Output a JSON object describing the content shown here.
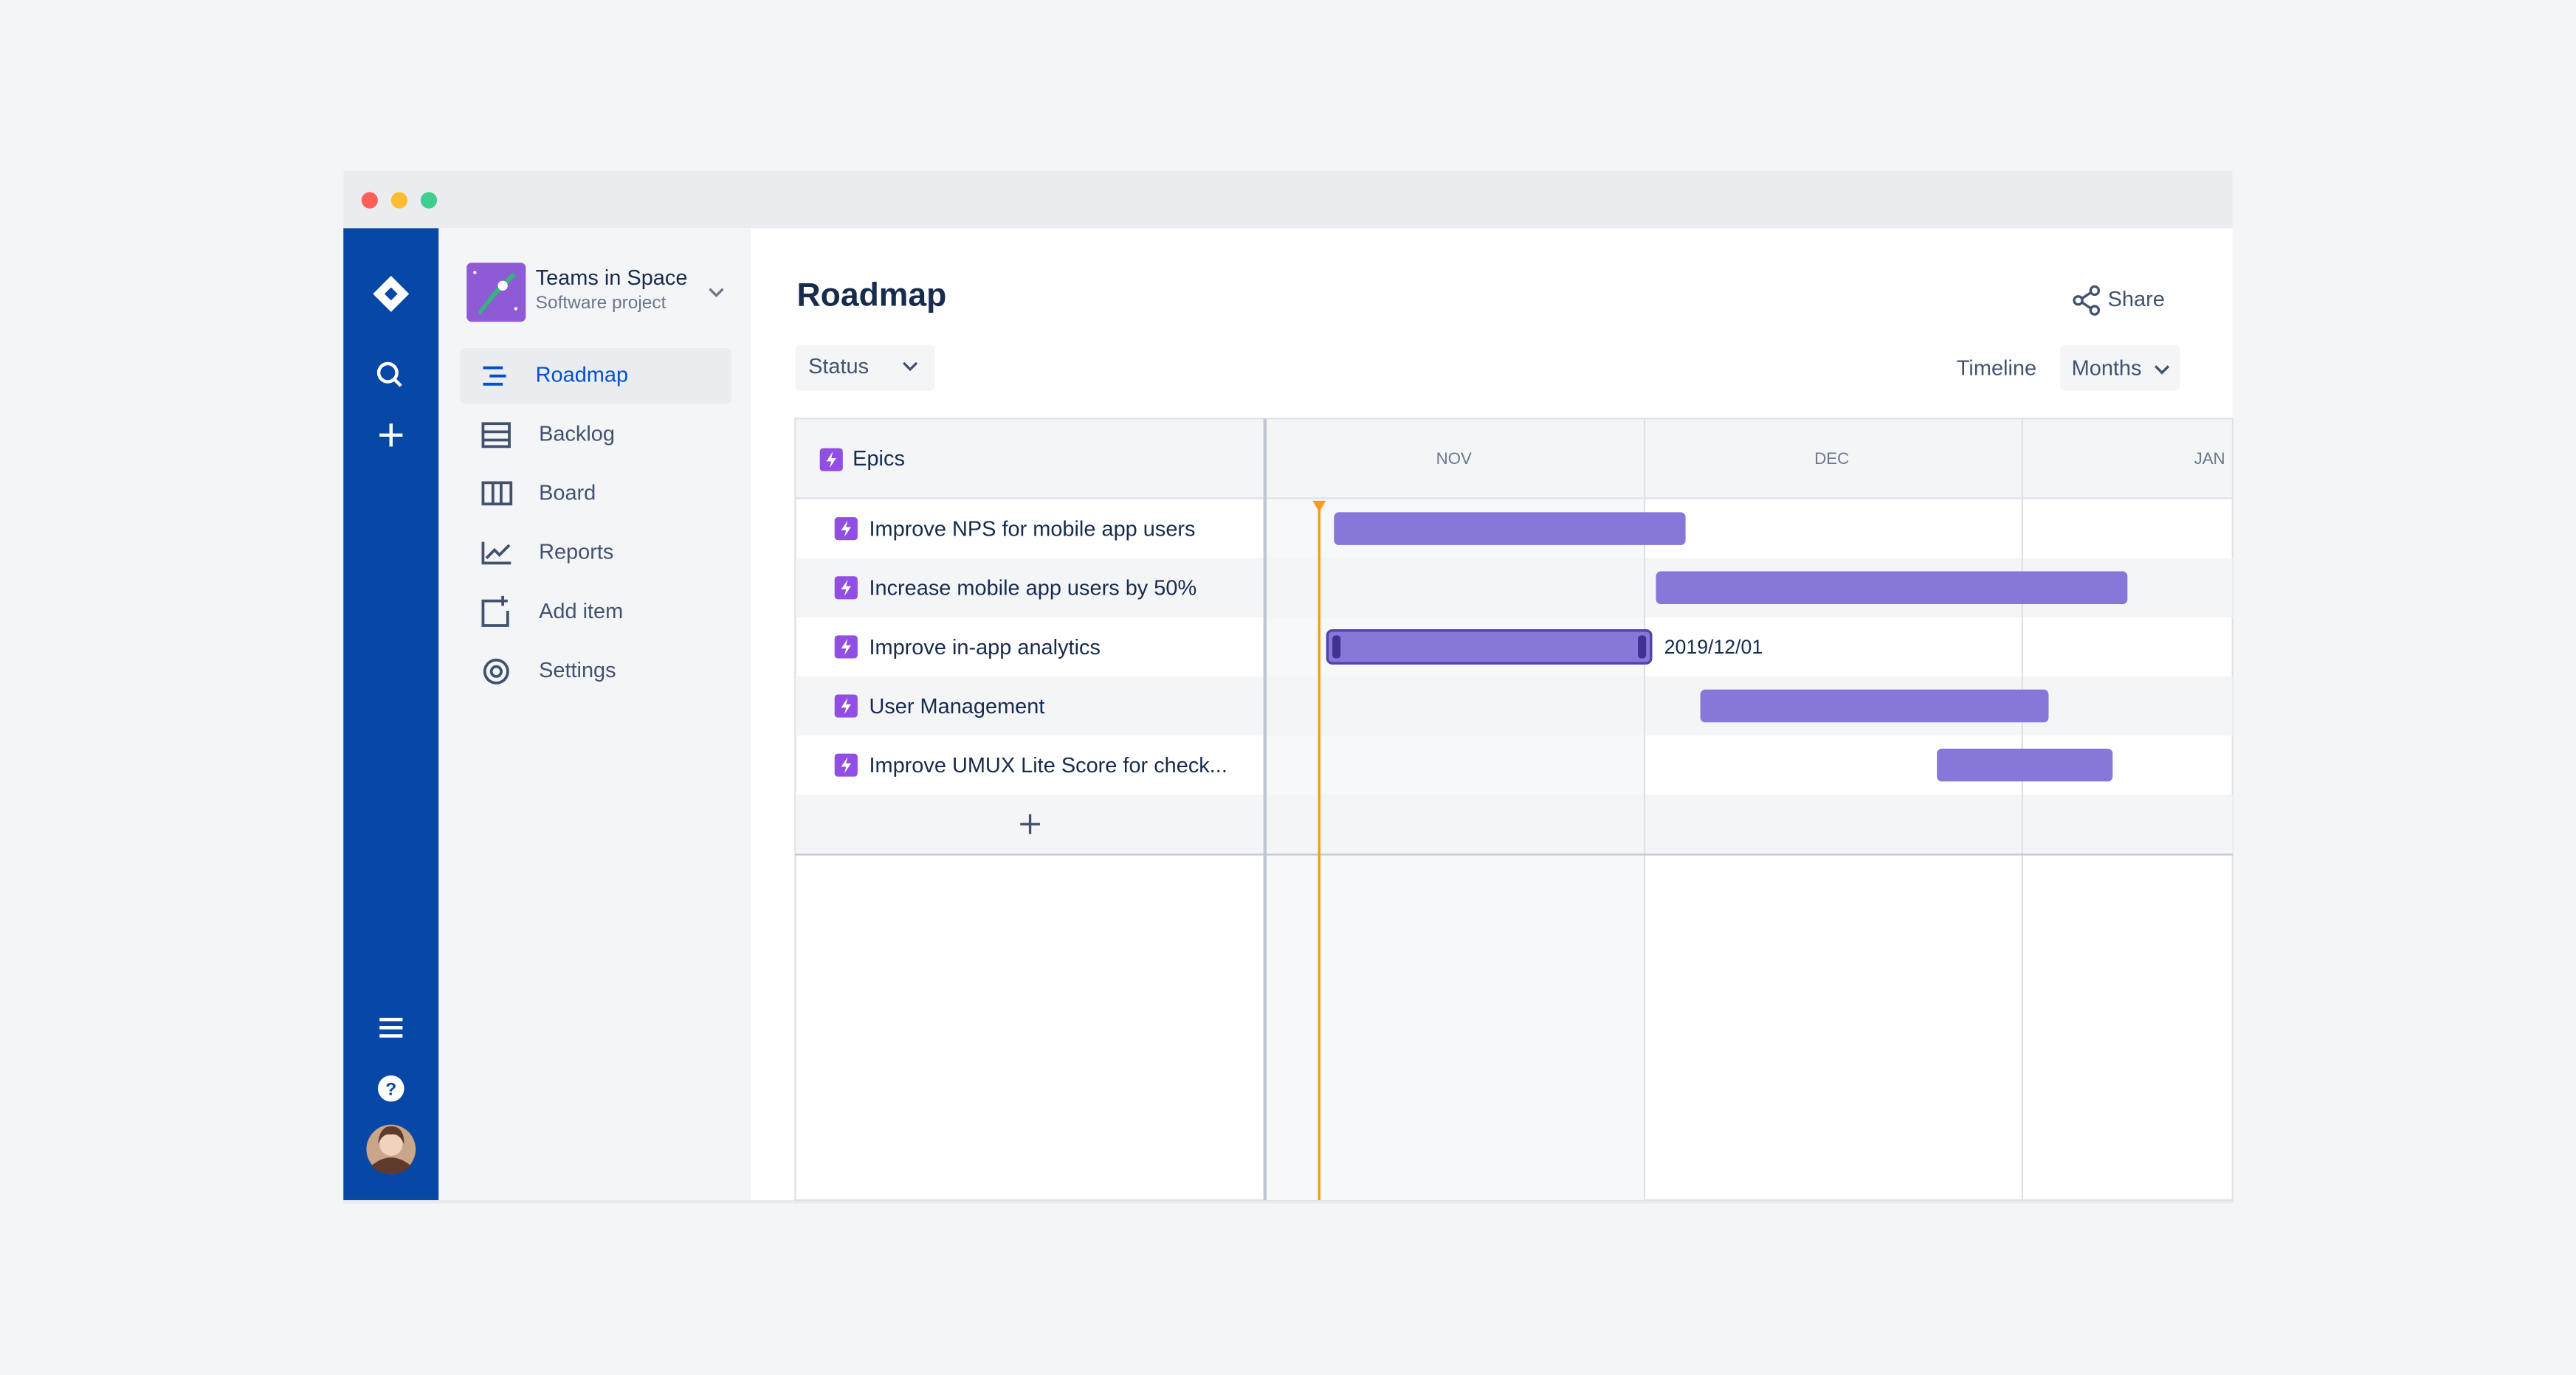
{
  "sidebar": {
    "project": {
      "name": "Teams in Space",
      "type": "Software project"
    },
    "nav": [
      "Roadmap",
      "Backlog",
      "Board",
      "Reports",
      "Add item",
      "Settings"
    ]
  },
  "header": {
    "title": "Roadmap",
    "share": "Share"
  },
  "filters": {
    "status": "Status",
    "timeline": "Timeline",
    "zoom": "Months"
  },
  "roadmap": {
    "column_header": "Epics",
    "months": [
      "NOV",
      "DEC",
      "JAN"
    ],
    "epics": [
      "Improve NPS for mobile app users",
      "Increase mobile app users by 50%",
      "Improve in-app analytics",
      "User Management",
      "Improve UMUX Lite Score for check..."
    ],
    "date_label": "2019/12/01"
  }
}
